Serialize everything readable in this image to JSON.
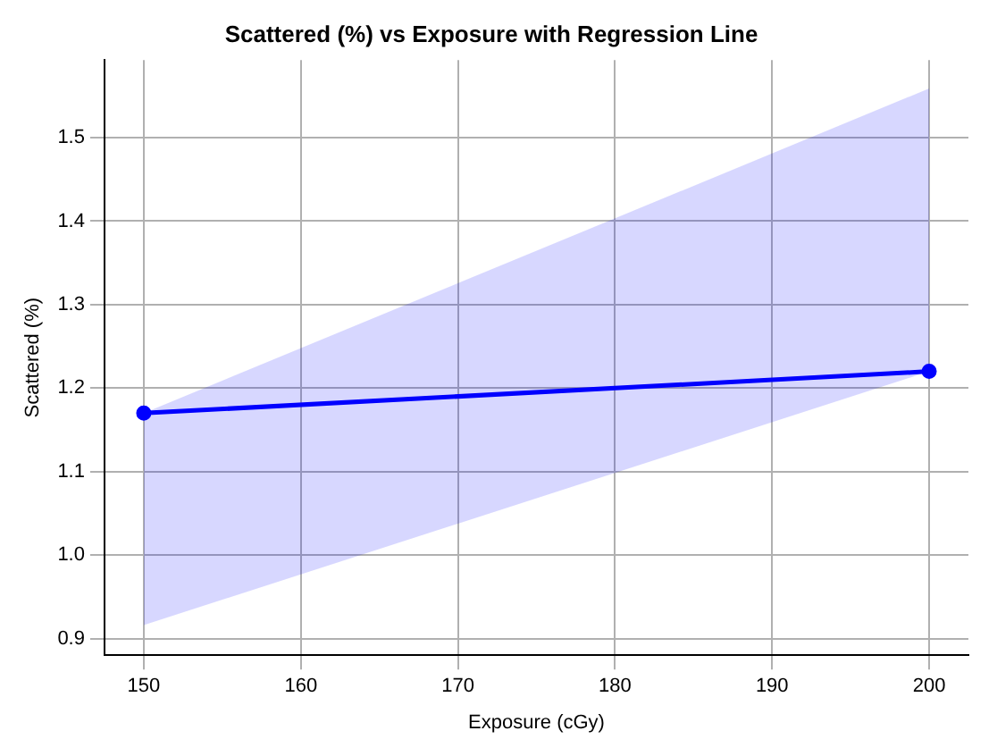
{
  "chart_data": {
    "type": "line",
    "title": "Scattered (%) vs Exposure with Regression Line",
    "xlabel": "Exposure (cGy)",
    "ylabel": "Scattered (%)",
    "series": [
      {
        "color": "#0000ff",
        "x": [
          150,
          200
        ],
        "values": [
          1.17,
          1.22
        ],
        "lower": [
          0.916,
          1.22
        ],
        "upper": [
          1.17,
          1.559
        ]
      }
    ],
    "xlim": [
      147.5,
      202.5
    ],
    "xticks": [
      150,
      160,
      170,
      180,
      190,
      200
    ],
    "ylim": [
      0.88,
      1.593
    ],
    "yticks": [
      0.9,
      {
        "value": 1,
        "label": "1.0"
      },
      1.1,
      1.2,
      1.3,
      1.4,
      1.5
    ],
    "grid": true,
    "marker": "circle",
    "line_style": "solid",
    "legend": false
  }
}
